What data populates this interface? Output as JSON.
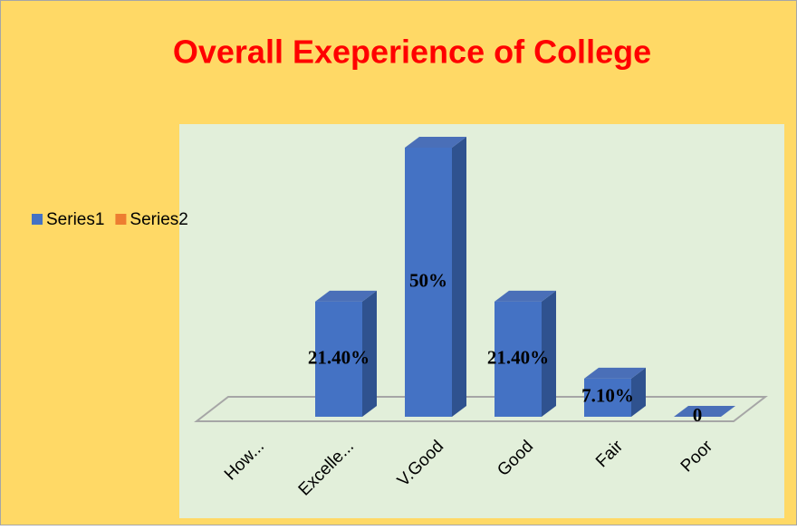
{
  "chart_data": {
    "type": "bar3d",
    "title": "Overall Exeperience of College",
    "categories": [
      "How...",
      "Excelle...",
      "V.Good",
      "Good",
      "Fair",
      "Poor"
    ],
    "series": [
      {
        "name": "Series1",
        "color": "#4472c4",
        "values": [
          null,
          21.4,
          50,
          21.4,
          7.1,
          0
        ],
        "value_labels": [
          null,
          "21.40%",
          "50%",
          "21.40%",
          "7.10%",
          "0"
        ]
      },
      {
        "name": "Series2",
        "color": "#ed7d31",
        "values": [
          null,
          null,
          null,
          null,
          null,
          null
        ]
      }
    ],
    "legend": "left"
  }
}
